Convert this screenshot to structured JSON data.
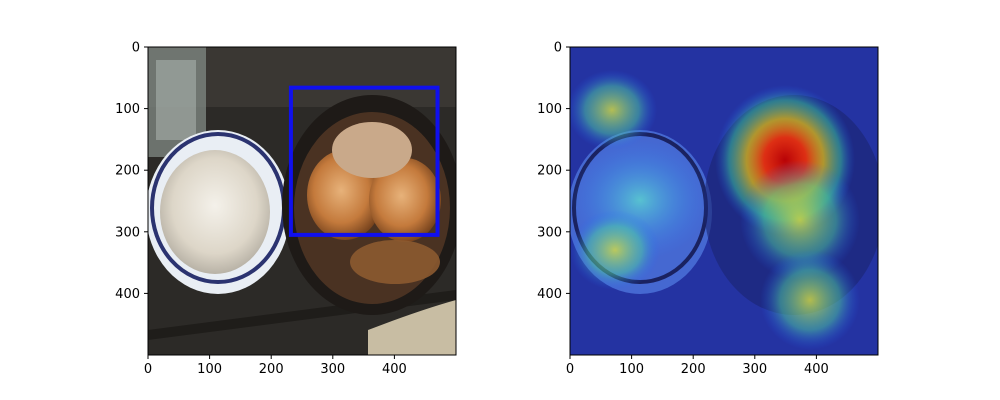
{
  "panels": [
    {
      "id": "left",
      "kind": "photo-with-bbox",
      "x_ticks": [
        "0",
        "100",
        "200",
        "300",
        "400"
      ],
      "y_ticks": [
        "0",
        "100",
        "200",
        "300",
        "400"
      ],
      "axis_range": {
        "x": [
          0,
          500
        ],
        "y": [
          0,
          500
        ]
      },
      "bbox": {
        "x0": 232,
        "y0": 66,
        "x1": 470,
        "y1": 305,
        "color": "#1010ee"
      }
    },
    {
      "id": "right",
      "kind": "heatmap-overlay",
      "x_ticks": [
        "0",
        "100",
        "200",
        "300",
        "400"
      ],
      "y_ticks": [
        "0",
        "100",
        "200",
        "300",
        "400"
      ],
      "axis_range": {
        "x": [
          0,
          500
        ],
        "y": [
          0,
          500
        ]
      }
    }
  ]
}
